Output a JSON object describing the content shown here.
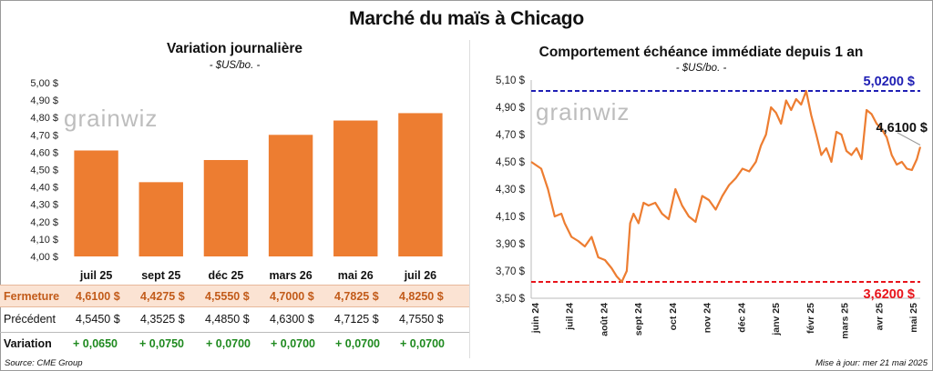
{
  "main_title": "Marché du maïs à Chicago",
  "left": {
    "title": "Variation journalière",
    "unit": "- $US/bo. -",
    "watermark": "grainwiz"
  },
  "right": {
    "title": "Comportement échéance immédiate depuis 1 an",
    "unit": "- $US/bo. -",
    "watermark": "grainwiz",
    "high_label": "5,0200 $",
    "low_label": "3,6200 $",
    "last_label": "4,6100 $"
  },
  "table": {
    "row_close_label": "Fermeture",
    "row_prev_label": "Précédent",
    "row_var_label": "Variation",
    "close": [
      "4,6100 $",
      "4,4275 $",
      "4,5550 $",
      "4,7000 $",
      "4,7825 $",
      "4,8250 $"
    ],
    "prev": [
      "4,5450 $",
      "4,3525 $",
      "4,4850 $",
      "4,6300 $",
      "4,7125 $",
      "4,7550 $"
    ],
    "var": [
      "+ 0,0650",
      "+ 0,0750",
      "+ 0,0700",
      "+ 0,0700",
      "+ 0,0700",
      "+ 0,0700"
    ]
  },
  "footer": {
    "source": "Source: CME Group",
    "updated": "Mise à jour: mer 21 mai 2025"
  },
  "colors": {
    "bar": "#ed7d31",
    "line": "#ed7d31",
    "high_line": "#1f1fb4",
    "low_line": "#e8141b",
    "positive": "#1f8a1f"
  },
  "chart_data": [
    {
      "type": "bar",
      "title": "Variation journalière",
      "ylabel": "- $US/bo. -",
      "categories": [
        "juil 25",
        "sept 25",
        "déc 25",
        "mars 26",
        "mai 26",
        "juil 26"
      ],
      "values": [
        4.61,
        4.4275,
        4.555,
        4.7,
        4.7825,
        4.825
      ],
      "ylim": [
        4.0,
        5.0
      ],
      "yticks": [
        4.0,
        4.1,
        4.2,
        4.3,
        4.4,
        4.5,
        4.6,
        4.7,
        4.8,
        4.9,
        5.0
      ],
      "ytick_labels": [
        "4,00 $",
        "4,10 $",
        "4,20 $",
        "4,30 $",
        "4,40 $",
        "4,50 $",
        "4,60 $",
        "4,70 $",
        "4,80 $",
        "4,90 $",
        "5,00 $"
      ],
      "grid": false
    },
    {
      "type": "line",
      "title": "Comportement échéance immédiate depuis 1 an",
      "ylabel": "- $US/bo. -",
      "x_tick_labels": [
        "juin 24",
        "juil 24",
        "août 24",
        "sept 24",
        "oct 24",
        "nov 24",
        "déc 24",
        "janv 25",
        "févr 25",
        "mars 25",
        "avr 25",
        "mai 25"
      ],
      "ylim": [
        3.5,
        5.1
      ],
      "yticks": [
        3.5,
        3.7,
        3.9,
        4.1,
        4.3,
        4.5,
        4.7,
        4.9,
        5.1
      ],
      "ytick_labels": [
        "3,50 $",
        "3,70 $",
        "3,90 $",
        "4,10 $",
        "4,30 $",
        "4,50 $",
        "4,70 $",
        "4,90 $",
        "5,10 $"
      ],
      "high": 5.02,
      "low": 3.62,
      "last": 4.61,
      "x": [
        0,
        0.3,
        0.5,
        0.7,
        0.9,
        1.0,
        1.2,
        1.4,
        1.6,
        1.8,
        2.0,
        2.2,
        2.4,
        2.55,
        2.7,
        2.85,
        2.95,
        3.05,
        3.2,
        3.35,
        3.5,
        3.7,
        3.9,
        4.1,
        4.3,
        4.5,
        4.7,
        4.9,
        5.1,
        5.3,
        5.5,
        5.7,
        5.9,
        6.1,
        6.3,
        6.5,
        6.7,
        6.85,
        7.0,
        7.15,
        7.3,
        7.45,
        7.6,
        7.75,
        7.9,
        8.05,
        8.2,
        8.35,
        8.5,
        8.65,
        8.8,
        8.95,
        9.1,
        9.25,
        9.4,
        9.55,
        9.7,
        9.85,
        10.0,
        10.15,
        10.3,
        10.45,
        10.6,
        10.75,
        10.9,
        11.05,
        11.2,
        11.35,
        11.5,
        11.6
      ],
      "values": [
        4.5,
        4.45,
        4.3,
        4.1,
        4.12,
        4.05,
        3.95,
        3.92,
        3.88,
        3.95,
        3.8,
        3.78,
        3.72,
        3.66,
        3.62,
        3.7,
        4.05,
        4.12,
        4.05,
        4.2,
        4.18,
        4.2,
        4.12,
        4.08,
        4.3,
        4.18,
        4.1,
        4.06,
        4.25,
        4.22,
        4.15,
        4.25,
        4.33,
        4.38,
        4.45,
        4.43,
        4.5,
        4.62,
        4.7,
        4.9,
        4.86,
        4.78,
        4.95,
        4.88,
        4.96,
        4.92,
        5.02,
        4.84,
        4.7,
        4.55,
        4.6,
        4.5,
        4.72,
        4.7,
        4.58,
        4.55,
        4.6,
        4.52,
        4.88,
        4.85,
        4.78,
        4.74,
        4.68,
        4.55,
        4.48,
        4.5,
        4.45,
        4.44,
        4.52,
        4.61
      ],
      "annotations": [
        "5,0200 $",
        "3,6200 $",
        "4,6100 $"
      ]
    }
  ]
}
